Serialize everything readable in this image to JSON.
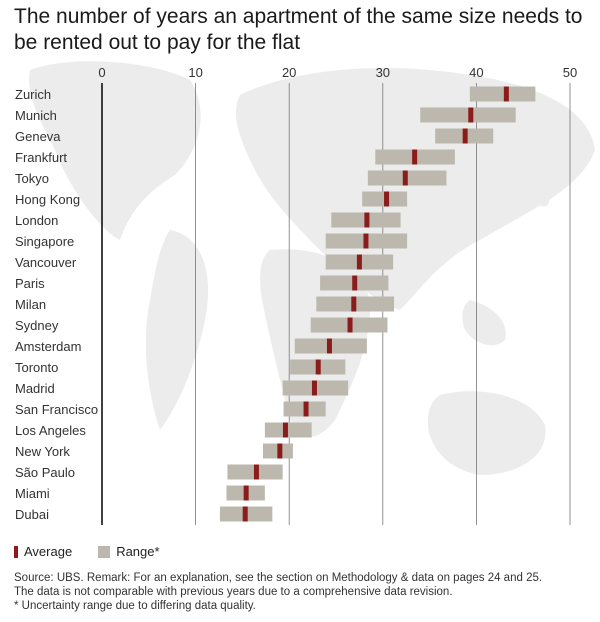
{
  "chart_data": {
    "type": "range-bar",
    "title": "The number of years an apartment of the same size needs to be rented out to pay for the flat",
    "xlim": [
      0,
      50
    ],
    "xticks": [
      0,
      10,
      20,
      30,
      40,
      50
    ],
    "tick_labels": [
      "0",
      "10",
      "20",
      "30",
      "40",
      "50"
    ],
    "grid": true,
    "legend": {
      "average_label": "Average",
      "range_label": "Range*"
    },
    "colors": {
      "range": "#bdb8ad",
      "average": "#8b1c1c",
      "axis": "#111111",
      "grid": "#777777"
    },
    "categories": [
      "Zurich",
      "Munich",
      "Geneva",
      "Frankfurt",
      "Tokyo",
      "Hong Kong",
      "London",
      "Singapore",
      "Vancouver",
      "Paris",
      "Milan",
      "Sydney",
      "Amsterdam",
      "Toronto",
      "Madrid",
      "San Francisco",
      "Los Angeles",
      "New York",
      "São Paulo",
      "Miami",
      "Dubai"
    ],
    "series": [
      {
        "name": "Range*",
        "low": [
          39.3,
          34.0,
          35.6,
          29.2,
          28.4,
          27.8,
          24.5,
          23.9,
          23.9,
          23.3,
          22.9,
          22.3,
          20.6,
          20.1,
          19.3,
          19.4,
          17.4,
          17.2,
          13.4,
          13.3,
          12.6
        ],
        "high": [
          46.3,
          44.2,
          41.8,
          37.7,
          36.8,
          32.6,
          31.9,
          32.6,
          31.1,
          30.6,
          31.2,
          30.5,
          28.3,
          26.0,
          26.3,
          23.9,
          22.4,
          20.4,
          19.3,
          17.4,
          18.2
        ]
      },
      {
        "name": "Average",
        "values": [
          43.2,
          39.4,
          38.8,
          33.4,
          32.4,
          30.4,
          28.3,
          28.2,
          27.5,
          27.0,
          26.9,
          26.5,
          24.3,
          23.1,
          22.7,
          21.8,
          19.6,
          19.0,
          16.5,
          15.4,
          15.3
        ]
      }
    ]
  },
  "legend": {
    "average": "Average",
    "range": "Range*"
  },
  "source": {
    "line1": "Source: UBS. Remark: For an explanation, see the section on Methodology & data on pages 24 and 25.",
    "line2": "The data is not comparable with previous years due to a comprehensive data revision.",
    "line3": "* Uncertainty range due to differing data quality."
  }
}
